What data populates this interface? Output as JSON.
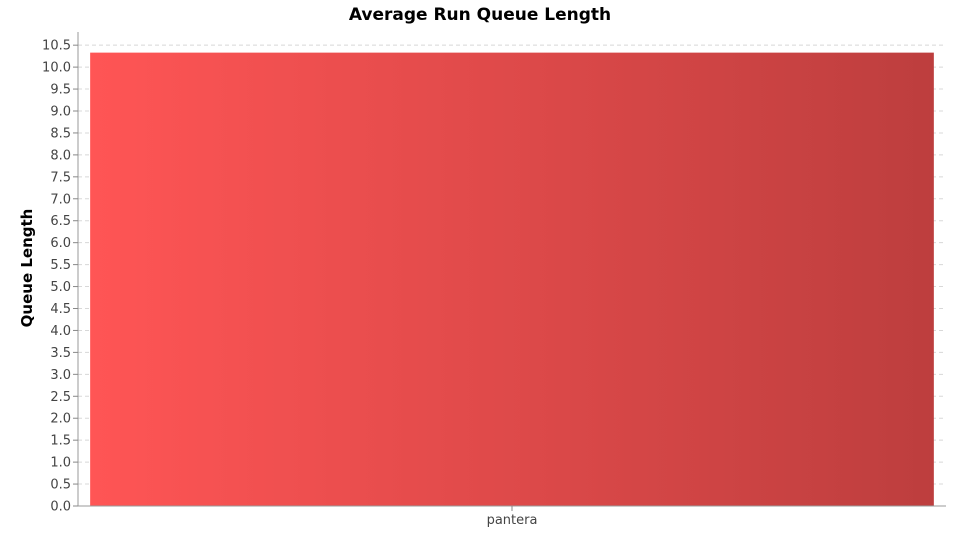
{
  "chart_data": {
    "type": "bar",
    "title": "Average Run Queue Length",
    "xlabel": "",
    "ylabel": "Queue Length",
    "categories": [
      "pantera"
    ],
    "values": [
      10.33
    ],
    "ylim": [
      0,
      10.8
    ],
    "ytick_step": 0.5,
    "ytick_labels": [
      "0.0",
      "0.5",
      "1.0",
      "1.5",
      "2.0",
      "2.5",
      "3.0",
      "3.5",
      "4.0",
      "4.5",
      "5.0",
      "5.5",
      "6.0",
      "6.5",
      "7.0",
      "7.5",
      "8.0",
      "8.5",
      "9.0",
      "9.5",
      "10.0",
      "10.5"
    ],
    "grid": true,
    "legend": "none",
    "bar_color_start": "#ff5555",
    "bar_color_end": "#bd3e3e"
  }
}
